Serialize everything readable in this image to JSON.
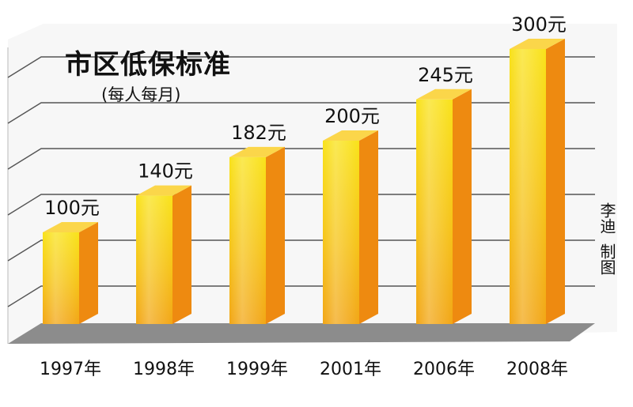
{
  "chart_data": {
    "type": "bar",
    "title": "市区低保标准",
    "subtitle": "(每人每月)",
    "categories": [
      "1997年",
      "1998年",
      "1999年",
      "2001年",
      "2006年",
      "2008年"
    ],
    "values": [
      100,
      140,
      182,
      200,
      245,
      300
    ],
    "value_labels": [
      "100元",
      "140元",
      "182元",
      "200元",
      "245元",
      "300元"
    ],
    "unit": "元",
    "ylim": [
      0,
      300
    ],
    "grid": true,
    "style": "3d-bar"
  },
  "credit": {
    "author": "李迪",
    "label": "制图"
  },
  "colors": {
    "bar_front_top": "#f9e21a",
    "bar_front_bottom": "#f2a616",
    "bar_side": "#ee8a10",
    "bar_top": "#fbd64a",
    "floor": "#8c8c8c",
    "gridline": "#555555",
    "wall": "#f7f7f7"
  }
}
